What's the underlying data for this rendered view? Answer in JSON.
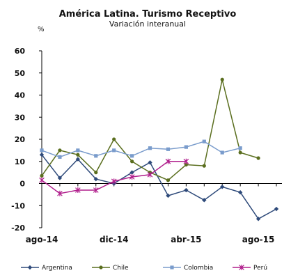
{
  "chart_data": {
    "type": "line",
    "title": "América Latina. Turismo Receptivo",
    "subtitle": "Variación interanual",
    "unit": "%",
    "ylim": [
      -20,
      60
    ],
    "yticks": [
      -20,
      -10,
      0,
      10,
      20,
      30,
      40,
      50,
      60
    ],
    "x": [
      "ago-14",
      "sep-14",
      "oct-14",
      "nov-14",
      "dic-14",
      "ene-15",
      "feb-15",
      "mar-15",
      "abr-15",
      "may-15",
      "jun-15",
      "jul-15",
      "ago-15",
      "sep-15"
    ],
    "xtick_labels": [
      {
        "index": 0,
        "label": "ago-14"
      },
      {
        "index": 4,
        "label": "dic-14"
      },
      {
        "index": 8,
        "label": "abr-15"
      },
      {
        "index": 12,
        "label": "ago-15"
      }
    ],
    "legend_position": "bottom",
    "grid": false,
    "series": [
      {
        "name": "Argentina",
        "color": "#2e4a7a",
        "marker": "diamond",
        "values": [
          13,
          2.5,
          11,
          2,
          0,
          5,
          9.5,
          -5.5,
          -3,
          -7.5,
          -1.5,
          -4,
          -16,
          -11.5
        ]
      },
      {
        "name": "Chile",
        "color": "#5a6e1e",
        "marker": "circle",
        "values": [
          3.5,
          15,
          13,
          5,
          20,
          10,
          5,
          1.5,
          8.5,
          8,
          47,
          14,
          11.5,
          null
        ]
      },
      {
        "name": "Colombia",
        "color": "#7a9ccc",
        "marker": "square",
        "values": [
          15,
          12,
          15,
          12.5,
          15,
          12.5,
          16,
          15.5,
          16.5,
          19,
          14,
          16,
          null,
          null
        ]
      },
      {
        "name": "Perú",
        "color": "#b01e8c",
        "marker": "star",
        "values": [
          1.5,
          -4.5,
          -3,
          -3,
          1,
          3,
          4,
          10,
          10,
          null,
          null,
          null,
          null,
          null
        ]
      }
    ]
  }
}
